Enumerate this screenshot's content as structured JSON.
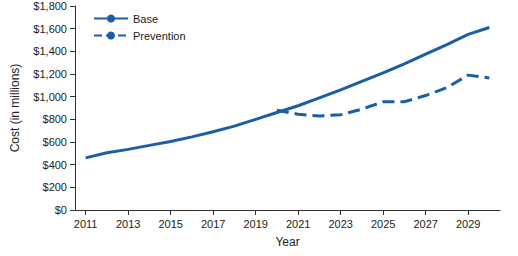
{
  "chart_data": {
    "type": "line",
    "x_label": "Year",
    "y_label": "Cost (in millions)",
    "x": [
      2011,
      2012,
      2013,
      2014,
      2015,
      2016,
      2017,
      2018,
      2019,
      2020,
      2021,
      2022,
      2023,
      2024,
      2025,
      2026,
      2027,
      2028,
      2029,
      2030
    ],
    "series": [
      {
        "name": "Base",
        "color": "#1b5ea6",
        "line_style": "solid",
        "values": [
          460,
          505,
          535,
          570,
          605,
          645,
          690,
          740,
          800,
          860,
          920,
          990,
          1060,
          1135,
          1210,
          1290,
          1375,
          1460,
          1550,
          1610
        ]
      },
      {
        "name": "Prevention",
        "color": "#1b5ea6",
        "line_style": "dashed",
        "values": [
          null,
          null,
          null,
          null,
          null,
          null,
          null,
          null,
          null,
          880,
          845,
          830,
          840,
          890,
          955,
          955,
          1010,
          1080,
          1190,
          1165
        ]
      }
    ],
    "xlim": [
      2010.5,
      2030.5
    ],
    "xticks": [
      2011,
      2013,
      2015,
      2017,
      2019,
      2021,
      2023,
      2025,
      2027,
      2029
    ],
    "ylim": [
      0,
      1800
    ],
    "yticks": [
      {
        "value": 0,
        "label": "$0"
      },
      {
        "value": 200,
        "label": "$200"
      },
      {
        "value": 400,
        "label": "$400"
      },
      {
        "value": 600,
        "label": "$600"
      },
      {
        "value": 800,
        "label": "$800"
      },
      {
        "value": 1000,
        "label": "$1,000"
      },
      {
        "value": 1200,
        "label": "$1,200"
      },
      {
        "value": 1400,
        "label": "$1,400"
      },
      {
        "value": 1600,
        "label": "$1,600"
      },
      {
        "value": 1800,
        "label": "$1,800"
      }
    ],
    "grid": false,
    "legend": "upper left"
  }
}
